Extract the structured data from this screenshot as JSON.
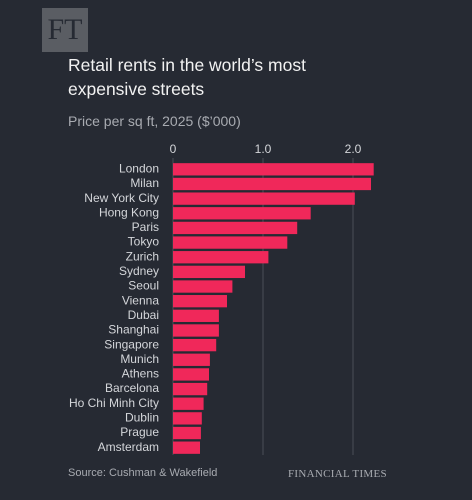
{
  "logo": "FT",
  "publisher": "FINANCIAL TIMES",
  "chart_data": {
    "type": "bar",
    "orientation": "horizontal",
    "title": "Retail rents in the world’s most expensive streets",
    "subtitle": "Price per sq ft, 2025 ($’000)",
    "source": "Source: Cushman & Wakefield",
    "categories": [
      "London",
      "Milan",
      "New York City",
      "Hong Kong",
      "Paris",
      "Tokyo",
      "Zurich",
      "Sydney",
      "Seoul",
      "Vienna",
      "Dubai",
      "Shanghai",
      "Singapore",
      "Munich",
      "Athens",
      "Barcelona",
      "Ho Chi Minh City",
      "Dublin",
      "Prague",
      "Amsterdam"
    ],
    "values": [
      2.23,
      2.2,
      2.02,
      1.53,
      1.38,
      1.27,
      1.06,
      0.8,
      0.66,
      0.6,
      0.51,
      0.51,
      0.48,
      0.41,
      0.4,
      0.38,
      0.34,
      0.32,
      0.31,
      0.3
    ],
    "color": "#f0285a",
    "xlim": [
      0,
      2.3
    ],
    "xticks": [
      0,
      {
        "value": 1,
        "label": "1.0"
      },
      {
        "value": 2,
        "label": "2.0"
      }
    ],
    "grid": true
  }
}
